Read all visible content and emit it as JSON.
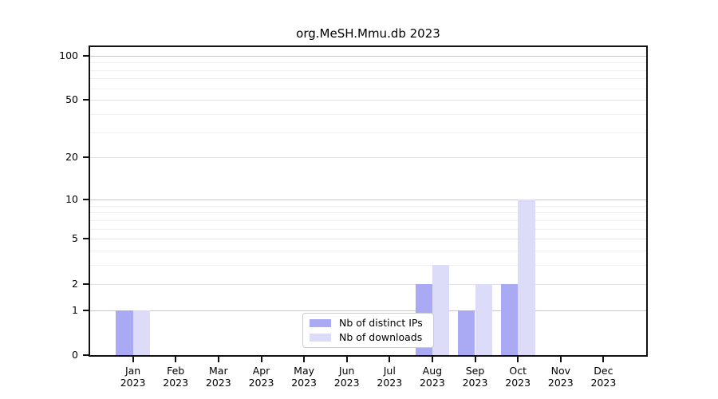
{
  "chart_data": {
    "type": "bar",
    "title": "org.MeSH.Mmu.db 2023",
    "categories": [
      "Jan",
      "Feb",
      "Mar",
      "Apr",
      "May",
      "Jun",
      "Jul",
      "Aug",
      "Sep",
      "Oct",
      "Nov",
      "Dec"
    ],
    "year_label": "2023",
    "series": [
      {
        "name": "Nb of distinct IPs",
        "color": "#a9a9f4",
        "values": [
          1,
          0,
          0,
          0,
          0,
          0,
          0,
          2,
          1,
          2,
          0,
          0
        ]
      },
      {
        "name": "Nb of downloads",
        "color": "#dcdcf9",
        "values": [
          1,
          0,
          0,
          0,
          0,
          0,
          0,
          3,
          2,
          10,
          0,
          0
        ]
      }
    ],
    "yticks": [
      100,
      50,
      20,
      10,
      5,
      2,
      1,
      0
    ],
    "gridlines": {
      "major": [
        1,
        10,
        100
      ],
      "mid": [
        2,
        5,
        20,
        50
      ],
      "minor": [
        3,
        4,
        6,
        7,
        8,
        9,
        30,
        40,
        60,
        70,
        80,
        90
      ]
    },
    "ylim_top_value": 113,
    "scale": "log10(1+x)",
    "grid": "on",
    "legend_position": "inside-bottom-center",
    "axis_color": "#111111",
    "grid_major_color": "#c7c7c7",
    "grid_minor_color": "#f0f0f0"
  }
}
